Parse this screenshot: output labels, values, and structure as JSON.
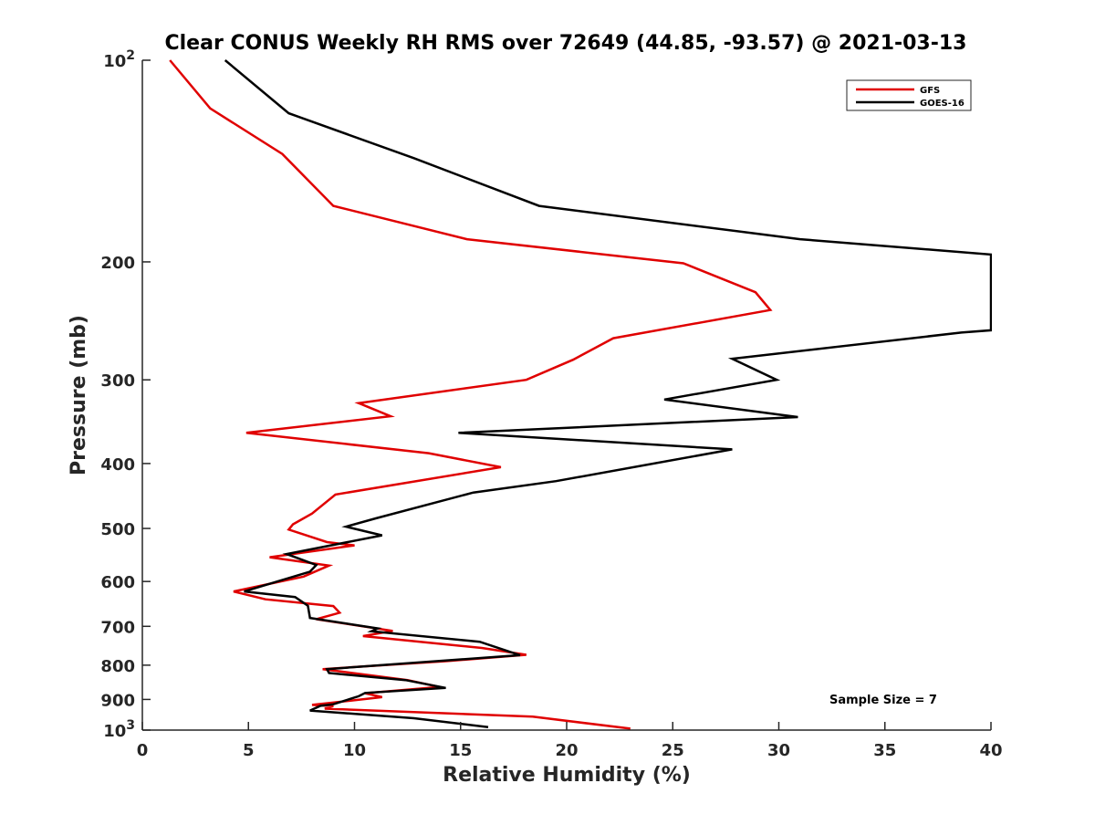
{
  "chart_data": {
    "type": "line",
    "title": "Clear CONUS Weekly RH RMS over 72649 (44.85, -93.57) @ 2021-03-13",
    "xlabel": "Relative Humidity (%)",
    "ylabel": "Pressure (mb)",
    "xlim": [
      0,
      40
    ],
    "ylim": [
      100,
      1000
    ],
    "y_scale": "log",
    "y_reversed": true,
    "grid": false,
    "legend_position": "top-right",
    "x_ticks": [
      0,
      5,
      10,
      15,
      20,
      25,
      30,
      35,
      40
    ],
    "x_tick_labels": [
      "0",
      "5",
      "10",
      "15",
      "20",
      "25",
      "30",
      "35",
      "40"
    ],
    "y_ticks": [
      100,
      200,
      300,
      400,
      500,
      600,
      700,
      800,
      900,
      1000
    ],
    "y_tick_labels": [
      {
        "base": "10",
        "exp": "2"
      },
      {
        "base": "200",
        "exp": ""
      },
      {
        "base": "300",
        "exp": ""
      },
      {
        "base": "400",
        "exp": ""
      },
      {
        "base": "500",
        "exp": ""
      },
      {
        "base": "600",
        "exp": ""
      },
      {
        "base": "700",
        "exp": ""
      },
      {
        "base": "800",
        "exp": ""
      },
      {
        "base": "900",
        "exp": ""
      },
      {
        "base": "10",
        "exp": "3"
      }
    ],
    "annotation": "Sample Size = 7",
    "series": [
      {
        "name": "GFS",
        "color": "#e00000",
        "points": [
          [
            1.3,
            100
          ],
          [
            3.2,
            118
          ],
          [
            6.6,
            138
          ],
          [
            9.0,
            165
          ],
          [
            15.3,
            185
          ],
          [
            25.5,
            201
          ],
          [
            28.9,
            222
          ],
          [
            29.6,
            236
          ],
          [
            22.2,
            260
          ],
          [
            20.3,
            280
          ],
          [
            18.1,
            300
          ],
          [
            10.2,
            325
          ],
          [
            11.7,
            340
          ],
          [
            4.9,
            360
          ],
          [
            13.5,
            386
          ],
          [
            16.9,
            405
          ],
          [
            9.1,
            445
          ],
          [
            8.0,
            475
          ],
          [
            7.1,
            493
          ],
          [
            6.9,
            502
          ],
          [
            8.7,
            524
          ],
          [
            10.0,
            530
          ],
          [
            6.0,
            552
          ],
          [
            8.8,
            568
          ],
          [
            7.6,
            590
          ],
          [
            4.3,
            621
          ],
          [
            5.8,
            638
          ],
          [
            9.0,
            653
          ],
          [
            9.3,
            668
          ],
          [
            8.2,
            683
          ],
          [
            11.8,
            711
          ],
          [
            10.4,
            724
          ],
          [
            16.0,
            754
          ],
          [
            18.1,
            772
          ],
          [
            14.3,
            789
          ],
          [
            8.5,
            811
          ],
          [
            12.5,
            842
          ],
          [
            14.0,
            862
          ],
          [
            10.5,
            881
          ],
          [
            11.3,
            893
          ],
          [
            8.0,
            917
          ],
          [
            9.0,
            921
          ],
          [
            8.6,
            929
          ],
          [
            18.4,
            955
          ],
          [
            23.0,
            995
          ]
        ]
      },
      {
        "name": "GOES-16",
        "color": "#000000",
        "points": [
          [
            3.9,
            100
          ],
          [
            6.9,
            120
          ],
          [
            12.8,
            140
          ],
          [
            18.7,
            165
          ],
          [
            31.0,
            185
          ],
          [
            40.0,
            195
          ],
          [
            40.0,
            253
          ],
          [
            38.6,
            255
          ],
          [
            27.8,
            279
          ],
          [
            29.9,
            300
          ],
          [
            24.6,
            321
          ],
          [
            30.9,
            341
          ],
          [
            14.9,
            360
          ],
          [
            27.8,
            381
          ],
          [
            19.5,
            425
          ],
          [
            15.6,
            442
          ],
          [
            11.0,
            483
          ],
          [
            9.6,
            497
          ],
          [
            11.3,
            512
          ],
          [
            6.8,
            546
          ],
          [
            8.2,
            567
          ],
          [
            7.9,
            580
          ],
          [
            4.8,
            621
          ],
          [
            7.2,
            633
          ],
          [
            7.8,
            652
          ],
          [
            7.9,
            680
          ],
          [
            11.1,
            705
          ],
          [
            10.8,
            712
          ],
          [
            15.9,
            738
          ],
          [
            17.8,
            773
          ],
          [
            8.7,
            811
          ],
          [
            8.8,
            822
          ],
          [
            12.4,
            842
          ],
          [
            14.3,
            865
          ],
          [
            10.5,
            880
          ],
          [
            10.2,
            890
          ],
          [
            9.0,
            915
          ],
          [
            8.4,
            920
          ],
          [
            7.9,
            935
          ],
          [
            12.8,
            960
          ],
          [
            16.3,
            990
          ]
        ]
      }
    ]
  }
}
